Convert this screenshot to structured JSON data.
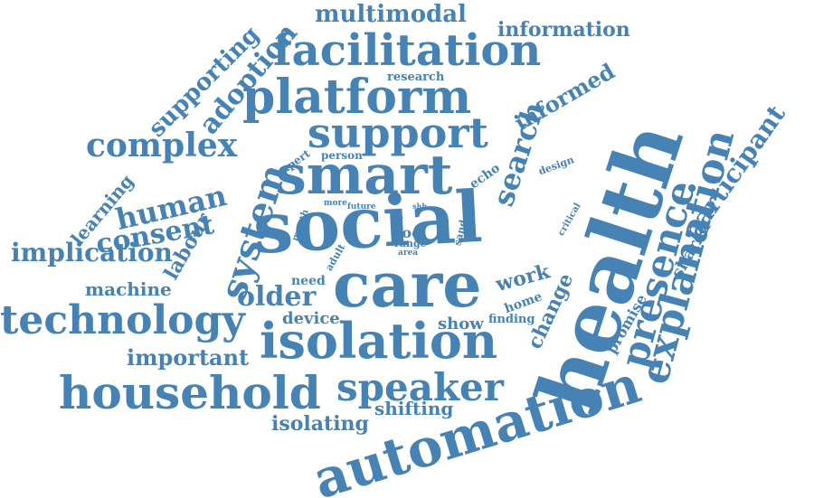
{
  "colors": {
    "word": "#4682B4",
    "background": "#ffffff"
  },
  "words": {
    "social": "social",
    "health": "health",
    "care": "care",
    "smart": "smart",
    "automation": "automation",
    "isolation": "isolation",
    "platform": "platform",
    "facilitation": "facilitation",
    "support": "support",
    "household": "household",
    "technology": "technology",
    "explanation": "explanation",
    "presence": "presence",
    "speaker": "speaker",
    "system": "system",
    "complex": "complex",
    "search": "search",
    "human": "human",
    "consent": "consent",
    "implication": "implication",
    "older": "older",
    "important": "important",
    "multimodal": "multimodal",
    "information": "information",
    "adoption": "adoption",
    "supporting": "supporting",
    "participant": "participant",
    "informed": "informed",
    "learning": "learning",
    "labour": "labour",
    "machine": "machine",
    "isolating": "isolating",
    "shifting": "shifting",
    "work": "work",
    "change": "change",
    "shared": "shared",
    "promise": "promise",
    "device": "device",
    "show": "show",
    "home": "home",
    "finding": "finding",
    "need": "need",
    "research": "research",
    "expert": "expert",
    "person": "person",
    "echo": "echo",
    "design": "design",
    "month": "month",
    "more": "more",
    "future": "future",
    "shh": "shh",
    "self": "self",
    "tool": "tool",
    "range": "range",
    "area": "area",
    "sand": "sand",
    "critical": "critical",
    "adult": "adult"
  }
}
